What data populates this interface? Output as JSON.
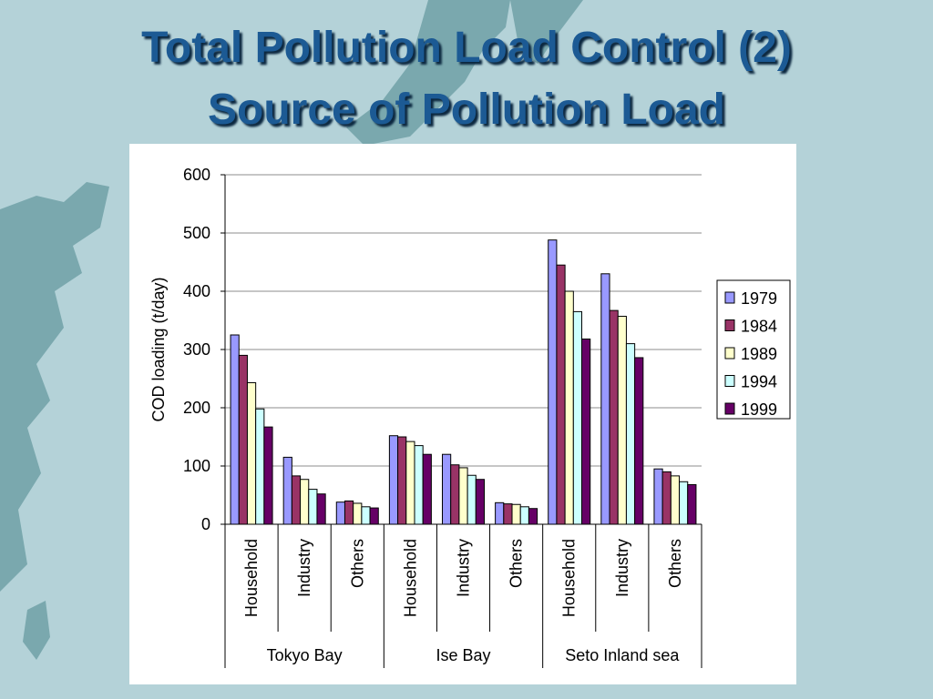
{
  "slide": {
    "title_line1": "Total Pollution Load Control (2)",
    "title_line2": "Source of Pollution Load"
  },
  "colors": {
    "slide_background": "#b4d2d8",
    "land": "#7aa8ae",
    "title_text": "#1c5a94"
  },
  "chart_data": {
    "type": "bar",
    "title": "",
    "xlabel": "",
    "ylabel": "COD loading (t/day)",
    "ylim": [
      0,
      600
    ],
    "yticks": [
      0,
      100,
      200,
      300,
      400,
      500,
      600
    ],
    "grid": true,
    "legend_position": "right",
    "groups": [
      {
        "name": "Tokyo Bay",
        "categories": [
          "Household",
          "Industry",
          "Others"
        ]
      },
      {
        "name": "Ise Bay",
        "categories": [
          "Household",
          "Industry",
          "Others"
        ]
      },
      {
        "name": "Seto Inland sea",
        "categories": [
          "Household",
          "Industry",
          "Others"
        ]
      }
    ],
    "series": [
      {
        "name": "1979",
        "color": "#9999ff",
        "values": [
          325,
          115,
          38,
          152,
          120,
          37,
          488,
          430,
          95
        ]
      },
      {
        "name": "1984",
        "color": "#993366",
        "values": [
          290,
          83,
          40,
          150,
          102,
          35,
          445,
          367,
          90
        ]
      },
      {
        "name": "1989",
        "color": "#ffffcc",
        "values": [
          243,
          77,
          36,
          142,
          97,
          34,
          400,
          357,
          83
        ]
      },
      {
        "name": "1994",
        "color": "#ccffff",
        "values": [
          198,
          60,
          30,
          135,
          84,
          30,
          365,
          310,
          73
        ]
      },
      {
        "name": "1999",
        "color": "#660066",
        "values": [
          167,
          52,
          28,
          120,
          77,
          27,
          318,
          286,
          68
        ]
      }
    ]
  }
}
